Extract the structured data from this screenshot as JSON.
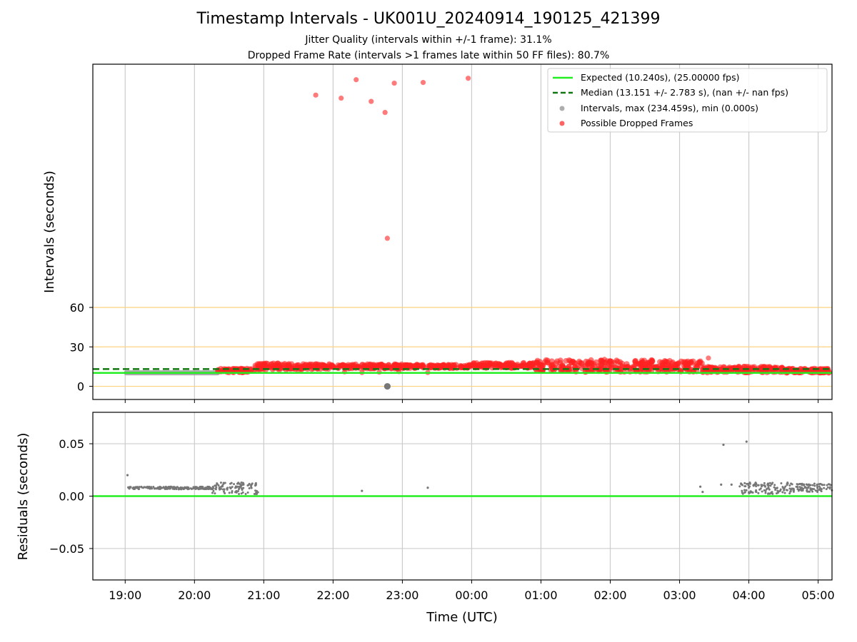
{
  "figure": {
    "title": "Timestamp Intervals - UK001U_20240914_190125_421399",
    "subtitle1": "Jitter Quality (intervals within +/-1 frame): 31.1%",
    "subtitle2": "Dropped Frame Rate (intervals >1 frames late within 50 FF files): 80.7%"
  },
  "chart_data": [
    {
      "type": "scatter",
      "panel": "intervals",
      "ylabel": "Intervals (seconds)",
      "xlabel": "",
      "x_axis": "time_utc",
      "xlim": [
        "18:32",
        "05:12"
      ],
      "ylim": [
        -10,
        245
      ],
      "yticks": [
        0,
        30,
        60
      ],
      "ytick_labels": [
        "0",
        "30",
        "60"
      ],
      "hlines": [
        0,
        30,
        60
      ],
      "hline_color": "#ffd27f",
      "grid": "x-only",
      "legend_position": "top-right",
      "series": [
        {
          "name": "Expected (10.240s), (25.00000 fps)",
          "kind": "hline",
          "value": 10.24,
          "color": "#22ee22"
        },
        {
          "name": "Median (13.151 +/- 2.783 s), (nan +/- nan fps)",
          "kind": "hline-dashed",
          "value": 13.151,
          "color": "#117711"
        },
        {
          "name": "Intervals, max (234.459s), min (0.000s)",
          "kind": "scatter",
          "color": "#999999",
          "note_segment": {
            "from": "19:01",
            "to": "20:20",
            "y": 10.25
          },
          "points": [
            [
              "22:47",
              0.0
            ],
            [
              "22:47",
              0.0
            ]
          ]
        },
        {
          "name": "Possible Dropped Frames",
          "kind": "scatter",
          "color": "#ff2222",
          "points": [
            [
              "21:45",
              221.5
            ],
            [
              "22:07",
              219.2
            ],
            [
              "22:20",
              233.2
            ],
            [
              "22:33",
              216.7
            ],
            [
              "22:45",
              208.3
            ],
            [
              "22:53",
              230.6
            ],
            [
              "23:18",
              231.1
            ],
            [
              "23:57",
              234.3
            ],
            [
              "22:47",
              112.6
            ],
            [
              "21:30",
              11.5
            ],
            [
              "22:10",
              11.0
            ],
            [
              "22:25",
              10.5
            ],
            [
              "22:40",
              10.8
            ],
            [
              "22:57",
              11.2
            ],
            [
              "23:22",
              10.5
            ],
            [
              "03:25",
              21.5
            ],
            [
              "03:10",
              19.0
            ],
            [
              "01:55",
              20.5
            ]
          ],
          "bands": [
            {
              "from": "20:20",
              "to": "20:52",
              "min": 10.5,
              "max": 13.5
            },
            {
              "from": "20:52",
              "to": "21:20",
              "min": 12.5,
              "max": 17.5
            },
            {
              "from": "21:20",
              "to": "22:00",
              "min": 13.0,
              "max": 17.0
            },
            {
              "from": "22:00",
              "to": "23:00",
              "min": 13.5,
              "max": 16.8
            },
            {
              "from": "23:00",
              "to": "00:00",
              "min": 13.8,
              "max": 16.5
            },
            {
              "from": "00:00",
              "to": "00:55",
              "min": 14.0,
              "max": 18.0
            },
            {
              "from": "00:55",
              "to": "01:30",
              "min": 11.5,
              "max": 20.0
            },
            {
              "from": "01:30",
              "to": "02:50",
              "min": 11.0,
              "max": 20.0
            },
            {
              "from": "02:50",
              "to": "03:20",
              "min": 11.0,
              "max": 19.5
            },
            {
              "from": "03:20",
              "to": "04:30",
              "min": 10.5,
              "max": 15.0
            },
            {
              "from": "04:30",
              "to": "05:10",
              "min": 10.3,
              "max": 13.5
            }
          ]
        }
      ]
    },
    {
      "type": "scatter",
      "panel": "residuals",
      "ylabel": "Residuals (seconds)",
      "xlabel": "Time (UTC)",
      "x_axis": "time_utc",
      "xlim": [
        "18:32",
        "05:12"
      ],
      "ylim": [
        -0.08,
        0.08
      ],
      "yticks": [
        -0.05,
        0.0,
        0.05
      ],
      "ytick_labels": [
        "−0.05",
        "0.00",
        "0.05"
      ],
      "xticks": [
        "19:00",
        "20:00",
        "21:00",
        "22:00",
        "23:00",
        "00:00",
        "01:00",
        "02:00",
        "03:00",
        "04:00",
        "05:00"
      ],
      "grid": "both",
      "series": [
        {
          "name": "zero",
          "kind": "hline",
          "value": 0.0,
          "color": "#22ee22"
        },
        {
          "name": "residuals",
          "kind": "scatter",
          "color": "#777777",
          "points": [
            [
              "19:02",
              0.02
            ],
            [
              "22:25",
              0.005
            ],
            [
              "23:22",
              0.008
            ],
            [
              "03:18",
              0.009
            ],
            [
              "03:20",
              0.004
            ],
            [
              "03:36",
              0.011
            ],
            [
              "03:38",
              0.049
            ],
            [
              "03:45",
              0.011
            ],
            [
              "03:58",
              0.052
            ]
          ],
          "bands": [
            {
              "from": "19:02",
              "to": "20:15",
              "min": 0.0065,
              "max": 0.009
            },
            {
              "from": "20:15",
              "to": "20:55",
              "min": 0.002,
              "max": 0.013
            },
            {
              "from": "03:52",
              "to": "04:40",
              "min": 0.002,
              "max": 0.013
            },
            {
              "from": "04:40",
              "to": "05:12",
              "min": 0.004,
              "max": 0.012
            }
          ]
        }
      ]
    }
  ]
}
